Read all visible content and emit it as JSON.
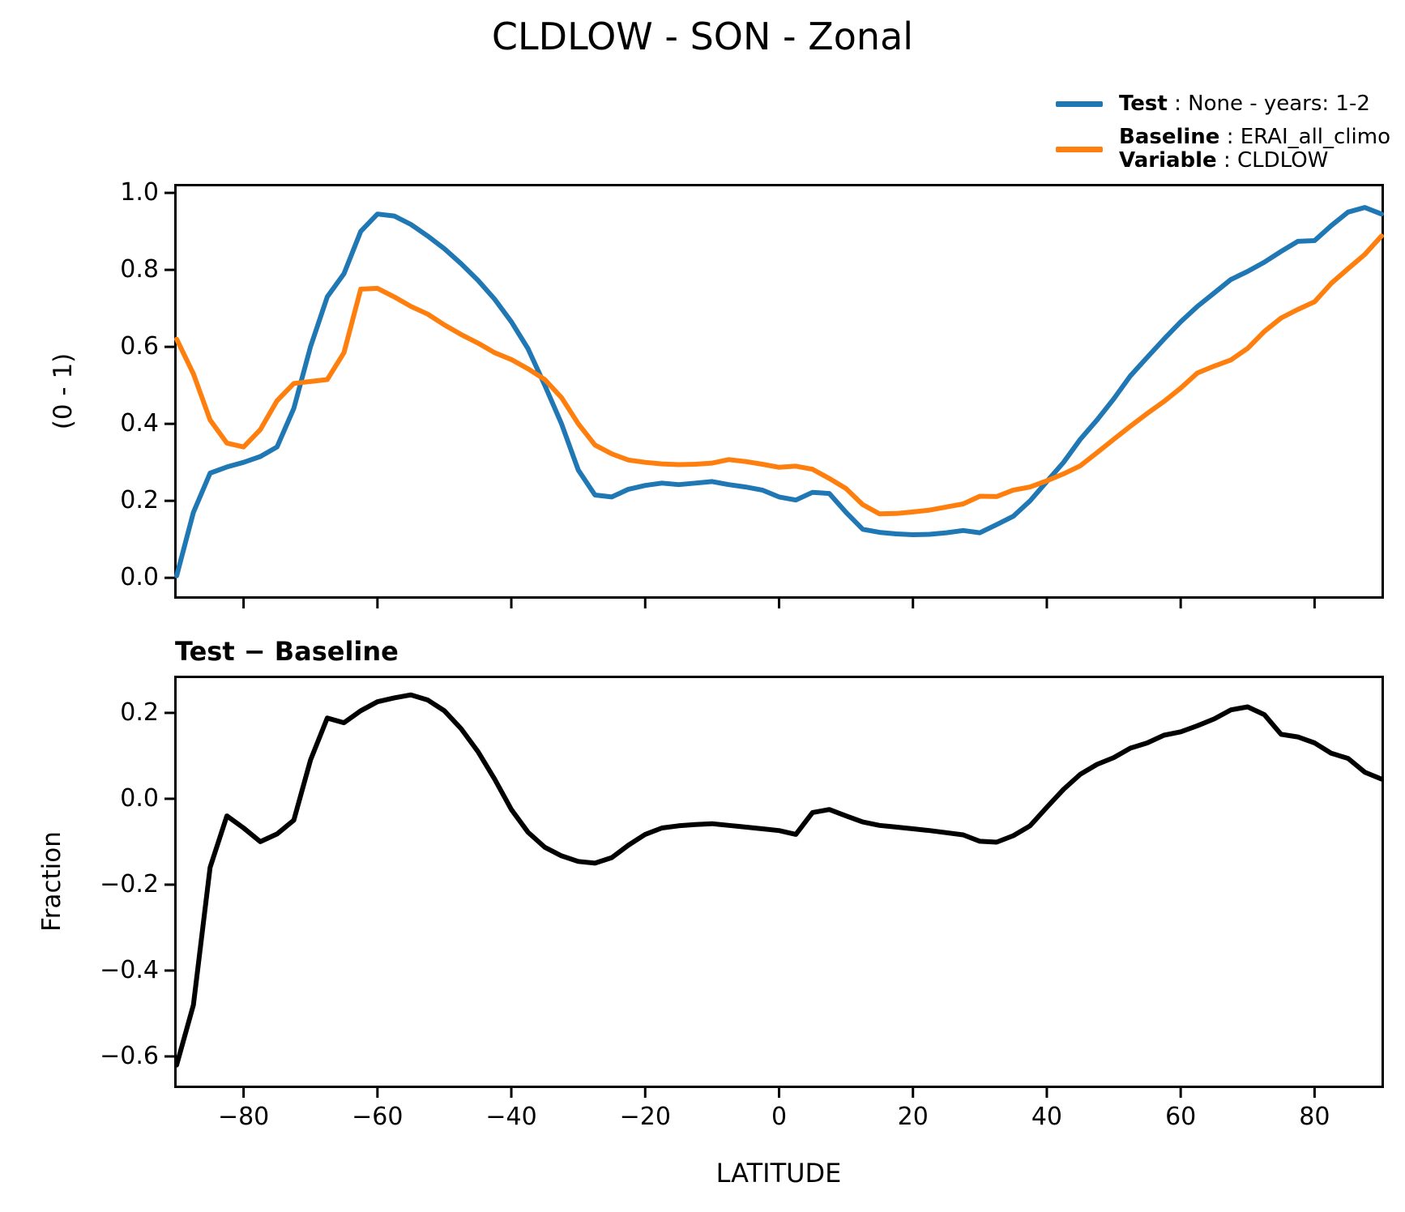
{
  "title": "CLDLOW - SON - Zonal",
  "colors": {
    "test": "#1f77b4",
    "baseline": "#ff7f0e",
    "diff": "#000000",
    "axes": "#000000",
    "background": "#ffffff"
  },
  "legend": {
    "test_key": "Test",
    "test_value": " : None - years: 1-2",
    "baseline_key": "Baseline",
    "baseline_value": " : ERAI_all_climo",
    "variable_key": "Variable",
    "variable_value": " : CLDLOW"
  },
  "chart_data": [
    {
      "type": "line",
      "title": "CLDLOW - SON - Zonal",
      "subtitle": "",
      "xlabel": "",
      "ylabel": "(0 - 1)",
      "xlim": [
        -90,
        90
      ],
      "ylim": [
        -0.048,
        1.017
      ],
      "grid": false,
      "legend_position": "outside upper right",
      "xticks": [
        -80,
        -60,
        -40,
        -20,
        0,
        20,
        40,
        60,
        80
      ],
      "xtick_labels": null,
      "yticks": [
        0,
        0.2,
        0.4,
        0.6,
        0.8,
        1
      ],
      "ytick_labels": [
        "0.0",
        "0.2",
        "0.4",
        "0.6",
        "0.8",
        "1.0"
      ],
      "x": [
        -90,
        -87.5,
        -85,
        -82.5,
        -80,
        -77.5,
        -75,
        -72.5,
        -70,
        -67.5,
        -65,
        -62.5,
        -60,
        -57.5,
        -55,
        -52.5,
        -50,
        -47.5,
        -45,
        -42.5,
        -40,
        -37.5,
        -35,
        -32.5,
        -30,
        -27.5,
        -25,
        -22.5,
        -20,
        -17.5,
        -15,
        -12.5,
        -10,
        -7.5,
        -5,
        -2.5,
        0,
        2.5,
        5,
        7.5,
        10,
        12.5,
        15,
        17.5,
        20,
        22.5,
        25,
        27.5,
        30,
        32.5,
        35,
        37.5,
        40,
        42.5,
        45,
        47.5,
        50,
        52.5,
        55,
        57.5,
        60,
        62.5,
        65,
        67.5,
        70,
        72.5,
        75,
        77.5,
        80,
        82.5,
        85,
        87.5,
        90
      ],
      "series": [
        {
          "id": "test",
          "name": "Test : None - years: 1-2",
          "color": "#1f77b4",
          "values": [
            0.005,
            0.17,
            0.272,
            0.288,
            0.3,
            0.315,
            0.34,
            0.44,
            0.6,
            0.73,
            0.79,
            0.9,
            0.945,
            0.94,
            0.918,
            0.888,
            0.855,
            0.816,
            0.773,
            0.724,
            0.665,
            0.595,
            0.5,
            0.4,
            0.28,
            0.215,
            0.21,
            0.23,
            0.24,
            0.246,
            0.242,
            0.246,
            0.25,
            0.242,
            0.236,
            0.228,
            0.21,
            0.202,
            0.222,
            0.219,
            0.17,
            0.126,
            0.118,
            0.114,
            0.112,
            0.113,
            0.117,
            0.123,
            0.117,
            0.138,
            0.16,
            0.2,
            0.25,
            0.3,
            0.36,
            0.41,
            0.465,
            0.525,
            0.573,
            0.62,
            0.665,
            0.705,
            0.74,
            0.775,
            0.796,
            0.82,
            0.848,
            0.874,
            0.876,
            0.915,
            0.95,
            0.962,
            0.945
          ]
        },
        {
          "id": "baseline",
          "name": "Baseline : ERAI_all_climo / Variable : CLDLOW",
          "color": "#ff7f0e",
          "values": [
            0.62,
            0.53,
            0.41,
            0.35,
            0.34,
            0.385,
            0.46,
            0.505,
            0.51,
            0.515,
            0.585,
            0.75,
            0.752,
            0.73,
            0.705,
            0.685,
            0.657,
            0.632,
            0.61,
            0.585,
            0.567,
            0.543,
            0.515,
            0.468,
            0.4,
            0.345,
            0.322,
            0.306,
            0.3,
            0.296,
            0.294,
            0.295,
            0.298,
            0.307,
            0.302,
            0.295,
            0.287,
            0.29,
            0.282,
            0.258,
            0.232,
            0.19,
            0.166,
            0.167,
            0.171,
            0.176,
            0.184,
            0.192,
            0.212,
            0.211,
            0.228,
            0.236,
            0.252,
            0.27,
            0.291,
            0.325,
            0.36,
            0.394,
            0.427,
            0.458,
            0.493,
            0.532,
            0.55,
            0.566,
            0.596,
            0.64,
            0.675,
            0.697,
            0.717,
            0.765,
            0.803,
            0.84,
            0.888
          ]
        }
      ]
    },
    {
      "type": "line",
      "title": "Test − Baseline",
      "xlabel": "LATITUDE",
      "ylabel": "Fraction",
      "xlim": [
        -90,
        90
      ],
      "ylim": [
        -0.668,
        0.281
      ],
      "grid": false,
      "xticks": [
        -80,
        -60,
        -40,
        -20,
        0,
        20,
        40,
        60,
        80
      ],
      "xtick_labels": [
        "−80",
        "−60",
        "−40",
        "−20",
        "0",
        "20",
        "40",
        "60",
        "80"
      ],
      "yticks": [
        0.2,
        0,
        -0.2,
        -0.4,
        -0.6
      ],
      "ytick_labels": [
        "0.2",
        "0.0",
        "−0.2",
        "−0.4",
        "−0.6"
      ],
      "x": [
        -90,
        -87.5,
        -85,
        -82.5,
        -80,
        -77.5,
        -75,
        -72.5,
        -70,
        -67.5,
        -65,
        -62.5,
        -60,
        -57.5,
        -55,
        -52.5,
        -50,
        -47.5,
        -45,
        -42.5,
        -40,
        -37.5,
        -35,
        -32.5,
        -30,
        -27.5,
        -25,
        -22.5,
        -20,
        -17.5,
        -15,
        -12.5,
        -10,
        -7.5,
        -5,
        -2.5,
        0,
        2.5,
        5,
        7.5,
        10,
        12.5,
        15,
        17.5,
        20,
        22.5,
        25,
        27.5,
        30,
        32.5,
        35,
        37.5,
        40,
        42.5,
        45,
        47.5,
        50,
        52.5,
        55,
        57.5,
        60,
        62.5,
        65,
        67.5,
        70,
        72.5,
        75,
        77.5,
        80,
        82.5,
        85,
        87.5,
        90
      ],
      "series": [
        {
          "id": "diff",
          "name": "Test − Baseline",
          "color": "#000000",
          "values": [
            -0.62,
            -0.48,
            -0.16,
            -0.04,
            -0.068,
            -0.1,
            -0.082,
            -0.05,
            0.09,
            0.188,
            0.177,
            0.205,
            0.226,
            0.235,
            0.242,
            0.23,
            0.205,
            0.163,
            0.11,
            0.046,
            -0.025,
            -0.078,
            -0.113,
            -0.133,
            -0.146,
            -0.15,
            -0.137,
            -0.108,
            -0.083,
            -0.068,
            -0.063,
            -0.06,
            -0.058,
            -0.062,
            -0.066,
            -0.07,
            -0.074,
            -0.083,
            -0.032,
            -0.025,
            -0.04,
            -0.054,
            -0.062,
            -0.066,
            -0.07,
            -0.074,
            -0.079,
            -0.084,
            -0.099,
            -0.101,
            -0.086,
            -0.063,
            -0.02,
            0.022,
            0.057,
            0.08,
            0.096,
            0.118,
            0.13,
            0.148,
            0.156,
            0.17,
            0.186,
            0.207,
            0.214,
            0.196,
            0.15,
            0.144,
            0.13,
            0.106,
            0.094,
            0.062,
            0.046
          ]
        }
      ]
    }
  ]
}
